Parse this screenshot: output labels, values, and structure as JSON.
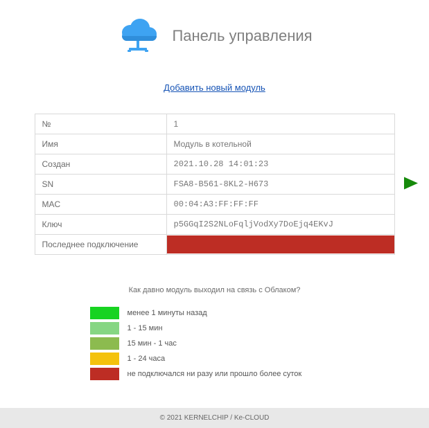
{
  "header": {
    "title": "Панель управления",
    "cloud_color_top": "#3ea3f2",
    "cloud_color_bottom": "#2f8edb",
    "stand_color": "#3ea3f2"
  },
  "add_link": "Добавить новый модуль",
  "module_table": {
    "rows": [
      {
        "label": "№",
        "value": "1",
        "mono": false
      },
      {
        "label": "Имя",
        "value": "Модуль в котельной",
        "mono": false
      },
      {
        "label": "Создан",
        "value": "2021.10.28 14:01:23",
        "mono": true
      },
      {
        "label": "SN",
        "value": "FSA8-B561-8KL2-H673",
        "mono": true
      },
      {
        "label": "MAC",
        "value": "00:04:A3:FF:FF:FF",
        "mono": true
      },
      {
        "label": "Ключ",
        "value": "p5GGqI2S2NLoFqljVodXy7DoEjq4EKvJ",
        "mono": true
      }
    ],
    "last_conn_label": "Последнее подключение",
    "last_conn_color": "#bd2d24",
    "arrow_color": "#168a0b"
  },
  "legend": {
    "title": "Как давно модуль выходил на связь с Облаком?",
    "items": [
      {
        "color": "#17d321",
        "label": "менее 1 минуты назад"
      },
      {
        "color": "#86d683",
        "label": "1 - 15 мин"
      },
      {
        "color": "#8cbb4f",
        "label": "15 мин - 1 час"
      },
      {
        "color": "#f4c20d",
        "label": "1 - 24 часа"
      },
      {
        "color": "#bd2d24",
        "label": "не подключался ни разу или прошло более суток"
      }
    ]
  },
  "footer": "© 2021 KERNELCHIP / Ke-CLOUD"
}
